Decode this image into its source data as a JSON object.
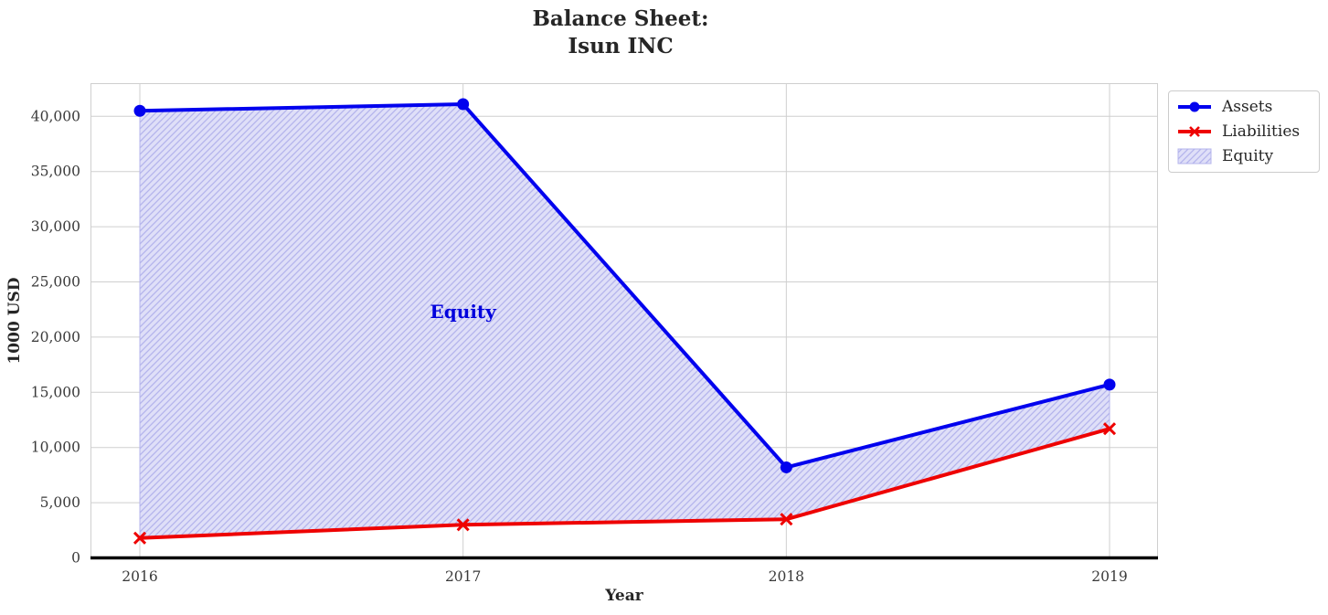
{
  "chart_data": {
    "type": "line",
    "title_lines": [
      "Balance Sheet:",
      "Isun INC"
    ],
    "xlabel": "Year",
    "ylabel": "1000 USD",
    "x": [
      2016,
      2017,
      2018,
      2019
    ],
    "series": [
      {
        "name": "Assets",
        "color": "#0202ee",
        "marker": "circle",
        "values": [
          40500,
          41100,
          8200,
          15700
        ]
      },
      {
        "name": "Liabilities",
        "color": "#ee0202",
        "marker": "x",
        "values": [
          1800,
          3000,
          3500,
          11700
        ]
      }
    ],
    "area": {
      "name": "Equity",
      "between": [
        "Assets",
        "Liabilities"
      ],
      "values": [
        38700,
        38100,
        4700,
        4000
      ],
      "fill_color": "#dfdff8",
      "hatch": "/",
      "hatch_color": "#b4b4ec"
    },
    "annotation": {
      "text": "Equity",
      "x": 2017,
      "y": 22300,
      "color": "#0000dd"
    },
    "ylim": [
      0,
      43000
    ],
    "yticks": [
      0,
      5000,
      10000,
      15000,
      20000,
      25000,
      30000,
      35000,
      40000
    ],
    "grid": true,
    "grid_color": "#cfcfcf",
    "tick_label_color": "#3a3a3a",
    "zero_line_color": "#000000",
    "legend_position": "outside upper right"
  }
}
